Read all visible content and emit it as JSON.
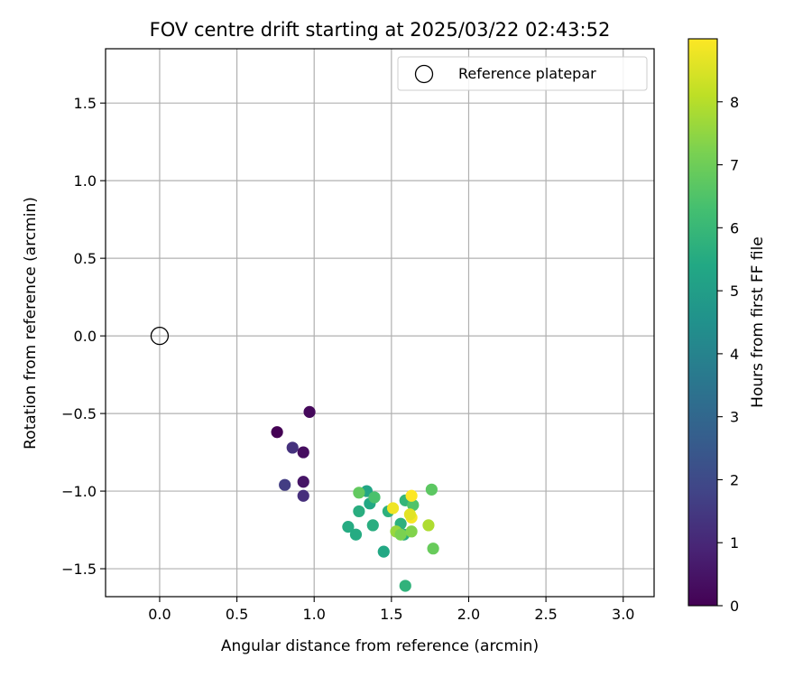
{
  "chart_data": {
    "type": "scatter",
    "title": "FOV centre drift starting at 2025/03/22 02:43:52",
    "xlabel": "Angular distance from reference (arcmin)",
    "ylabel": "Rotation from reference (arcmin)",
    "xlim": [
      -0.35,
      3.2
    ],
    "ylim": [
      -1.68,
      1.85
    ],
    "xticks": [
      0.0,
      0.5,
      1.0,
      1.5,
      2.0,
      2.5,
      3.0
    ],
    "yticks": [
      -1.5,
      -1.0,
      -0.5,
      0.0,
      0.5,
      1.0,
      1.5
    ],
    "xtick_labels": [
      "0.0",
      "0.5",
      "1.0",
      "1.5",
      "2.0",
      "2.5",
      "3.0"
    ],
    "ytick_labels": [
      "−1.5",
      "−1.0",
      "−0.5",
      "0.0",
      "0.5",
      "1.0",
      "1.5"
    ],
    "grid": true,
    "legend": {
      "placement": "top-right",
      "entries": [
        {
          "label": "Reference platepar",
          "marker": "open-circle",
          "color": "#000000"
        }
      ]
    },
    "reference_point": {
      "x": 0.0,
      "y": 0.0
    },
    "colorbar": {
      "label": "Hours from first FF file",
      "range": [
        0,
        9
      ],
      "ticks": [
        0,
        1,
        2,
        3,
        4,
        5,
        6,
        7,
        8
      ],
      "tick_labels": [
        "0",
        "1",
        "2",
        "3",
        "4",
        "5",
        "6",
        "7",
        "8"
      ],
      "colormap": "viridis"
    },
    "points": [
      {
        "x": 0.76,
        "y": -0.62,
        "hours": 0.0
      },
      {
        "x": 0.97,
        "y": -0.49,
        "hours": 0.2
      },
      {
        "x": 0.93,
        "y": -0.75,
        "hours": 0.3
      },
      {
        "x": 0.93,
        "y": -0.94,
        "hours": 0.5
      },
      {
        "x": 0.86,
        "y": -0.72,
        "hours": 1.3
      },
      {
        "x": 0.81,
        "y": -0.96,
        "hours": 1.6
      },
      {
        "x": 0.93,
        "y": -1.03,
        "hours": 1.2
      },
      {
        "x": 1.34,
        "y": -1.0,
        "hours": 5.3
      },
      {
        "x": 1.36,
        "y": -1.08,
        "hours": 5.4
      },
      {
        "x": 1.29,
        "y": -1.13,
        "hours": 5.6
      },
      {
        "x": 1.22,
        "y": -1.23,
        "hours": 5.5
      },
      {
        "x": 1.27,
        "y": -1.28,
        "hours": 5.5
      },
      {
        "x": 1.38,
        "y": -1.22,
        "hours": 5.6
      },
      {
        "x": 1.45,
        "y": -1.39,
        "hours": 5.4
      },
      {
        "x": 1.48,
        "y": -1.13,
        "hours": 5.7
      },
      {
        "x": 1.56,
        "y": -1.21,
        "hours": 5.7
      },
      {
        "x": 1.58,
        "y": -1.28,
        "hours": 5.6
      },
      {
        "x": 1.59,
        "y": -1.06,
        "hours": 5.9
      },
      {
        "x": 1.59,
        "y": -1.61,
        "hours": 5.8
      },
      {
        "x": 1.39,
        "y": -1.04,
        "hours": 6.4
      },
      {
        "x": 1.64,
        "y": -1.09,
        "hours": 6.5
      },
      {
        "x": 1.29,
        "y": -1.01,
        "hours": 6.8
      },
      {
        "x": 1.76,
        "y": -0.99,
        "hours": 6.7
      },
      {
        "x": 1.77,
        "y": -1.37,
        "hours": 6.9
      },
      {
        "x": 1.53,
        "y": -1.26,
        "hours": 7.6
      },
      {
        "x": 1.56,
        "y": -1.28,
        "hours": 7.2
      },
      {
        "x": 1.63,
        "y": -1.26,
        "hours": 7.3
      },
      {
        "x": 1.74,
        "y": -1.22,
        "hours": 7.9
      },
      {
        "x": 1.51,
        "y": -1.11,
        "hours": 8.8
      },
      {
        "x": 1.63,
        "y": -1.03,
        "hours": 9.0
      },
      {
        "x": 1.63,
        "y": -1.17,
        "hours": 8.9
      },
      {
        "x": 1.62,
        "y": -1.15,
        "hours": 8.6
      }
    ]
  }
}
